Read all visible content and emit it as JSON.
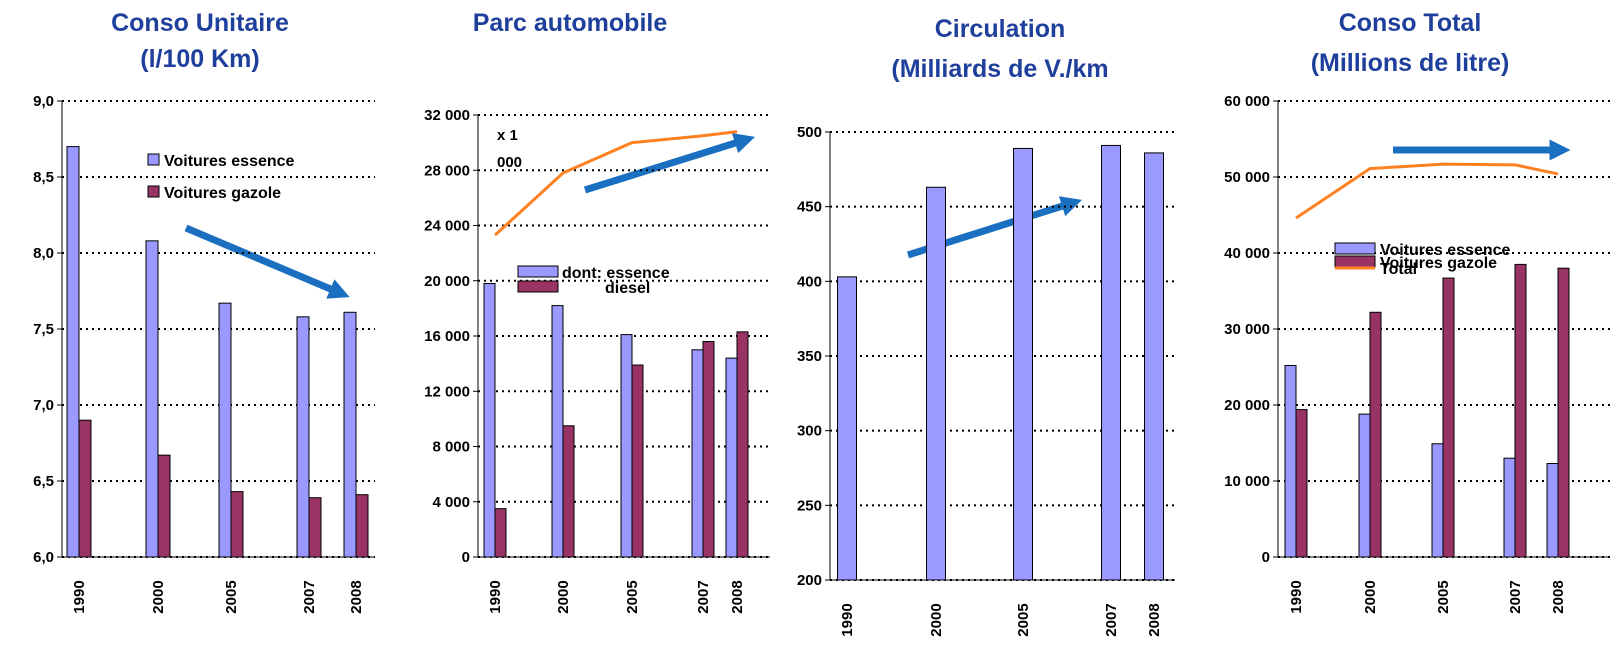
{
  "chart_data": [
    {
      "type": "bar",
      "title": "Conso Unitaire",
      "subtitle": "(l/100 Km)",
      "categories": [
        "1990",
        "2000",
        "2005",
        "2007",
        "2008"
      ],
      "series": [
        {
          "name": "Voitures essence",
          "color": "#9999ff",
          "values": [
            8.7,
            8.08,
            7.67,
            7.58,
            7.61
          ]
        },
        {
          "name": "Voitures gazole",
          "color": "#993366",
          "values": [
            6.9,
            6.67,
            6.43,
            6.39,
            6.41
          ]
        }
      ],
      "ylim": [
        6,
        9
      ],
      "yticks": [
        {
          "value": 6,
          "label": "6,0"
        },
        {
          "value": 6.5,
          "label": "6,5"
        },
        {
          "value": 7,
          "label": "7,0"
        },
        {
          "value": 7.5,
          "label": "7,5"
        },
        {
          "value": 8,
          "label": "8,0"
        },
        {
          "value": 8.5,
          "label": "8,5"
        },
        {
          "value": 9,
          "label": "9,0"
        }
      ],
      "grid": true
    },
    {
      "type": "bar",
      "title": "Parc automobile",
      "annotation": "x 1 000",
      "categories": [
        "1990",
        "2000",
        "2005",
        "2007",
        "2008"
      ],
      "series": [
        {
          "name": "dont: essence",
          "color": "#9999ff",
          "values": [
            19800,
            18200,
            16100,
            15000,
            14400
          ]
        },
        {
          "name": "diesel",
          "color": "#993366",
          "values": [
            3500,
            9500,
            13900,
            15600,
            16300
          ]
        },
        {
          "type": "line",
          "color": "#ff8020",
          "values": [
            23300,
            27800,
            30000,
            30500,
            30800
          ]
        }
      ],
      "ylim": [
        0,
        32000
      ],
      "yticks": [
        0,
        {
          "value": 4000,
          "label": "4 000"
        },
        {
          "value": 8000,
          "label": "8 000"
        },
        {
          "value": 12000,
          "label": "12 000"
        },
        {
          "value": 16000,
          "label": "16 000"
        },
        {
          "value": 20000,
          "label": "20 000"
        },
        {
          "value": 24000,
          "label": "24 000"
        },
        {
          "value": 28000,
          "label": "28 000"
        },
        {
          "value": 32000,
          "label": "32 000"
        }
      ],
      "grid": true
    },
    {
      "type": "bar",
      "title": "Circulation",
      "subtitle": "(Milliards de V./km",
      "categories": [
        "1990",
        "2000",
        "2005",
        "2007",
        "2008"
      ],
      "series": [
        {
          "color": "#9999ff",
          "values": [
            403,
            463,
            489,
            491,
            486
          ]
        }
      ],
      "ylim": [
        200,
        500
      ],
      "yticks": [
        200,
        250,
        300,
        350,
        400,
        450,
        500
      ],
      "grid": true
    },
    {
      "type": "bar",
      "title": "Conso Total",
      "subtitle": "(Millions de litre)",
      "categories": [
        "1990",
        "2000",
        "2005",
        "2007",
        "2008"
      ],
      "series": [
        {
          "name": "Voitures essence",
          "color": "#9999ff",
          "values": [
            25200,
            18800,
            14900,
            13000,
            12300
          ]
        },
        {
          "name": "Voitures gazole",
          "color": "#993366",
          "values": [
            19400,
            32200,
            36700,
            38500,
            38000
          ]
        },
        {
          "name": "Total",
          "type": "line",
          "color": "#ff8020",
          "values": [
            44600,
            51100,
            51700,
            51600,
            50400
          ]
        }
      ],
      "ylim": [
        0,
        60000
      ],
      "yticks": [
        0,
        {
          "value": 10000,
          "label": "10 000"
        },
        {
          "value": 20000,
          "label": "20 000"
        },
        {
          "value": 30000,
          "label": "30 000"
        },
        {
          "value": 40000,
          "label": "40 000"
        },
        {
          "value": 50000,
          "label": "50 000"
        },
        {
          "value": 60000,
          "label": "60 000"
        }
      ],
      "grid": true
    }
  ]
}
